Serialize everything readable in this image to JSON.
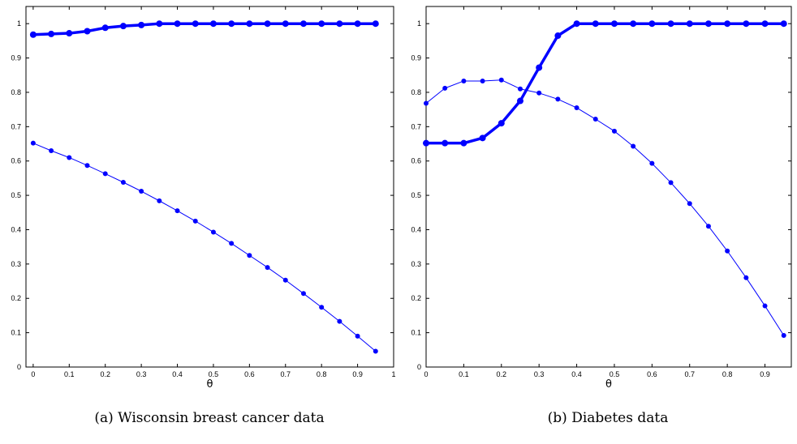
{
  "chart_data": [
    {
      "type": "line",
      "caption": "(a) Wisconsin breast cancer data",
      "xlabel": "θ",
      "ylabel": "",
      "xlim": [
        -0.02,
        1.0
      ],
      "ylim": [
        0,
        1.05
      ],
      "xticks": [
        "0",
        "0.1",
        "0.2",
        "0.3",
        "0.4",
        "0.5",
        "0.6",
        "0.7",
        "0.8",
        "0.9",
        "1"
      ],
      "yticks": [
        "0",
        "0.1",
        "0.2",
        "0.3",
        "0.4",
        "0.5",
        "0.6",
        "0.7",
        "0.8",
        "0.9",
        "1"
      ],
      "grid": false,
      "color": "#0000ff",
      "x": [
        0,
        0.05,
        0.1,
        0.15,
        0.2,
        0.25,
        0.3,
        0.35,
        0.4,
        0.45,
        0.5,
        0.55,
        0.6,
        0.65,
        0.7,
        0.75,
        0.8,
        0.85,
        0.9,
        0.95
      ],
      "series": [
        {
          "style": "thick",
          "values": [
            0.968,
            0.97,
            0.972,
            0.978,
            0.988,
            0.993,
            0.996,
            1,
            1,
            1,
            1,
            1,
            1,
            1,
            1,
            1,
            1,
            1,
            1,
            1
          ]
        },
        {
          "style": "thin",
          "values": [
            0.652,
            0.63,
            0.61,
            0.587,
            0.563,
            0.538,
            0.512,
            0.484,
            0.455,
            0.425,
            0.393,
            0.36,
            0.325,
            0.29,
            0.253,
            0.214,
            0.174,
            0.133,
            0.09,
            0.046
          ]
        }
      ]
    },
    {
      "type": "line",
      "caption": "(b) Diabetes data",
      "xlabel": "θ",
      "ylabel": "",
      "xlim": [
        0,
        0.97
      ],
      "ylim": [
        0,
        1.05
      ],
      "xticks": [
        "0",
        "0.1",
        "0.2",
        "0.3",
        "0.4",
        "0.5",
        "0.6",
        "0.7",
        "0.8",
        "0.9"
      ],
      "yticks": [
        "0",
        "0.1",
        "0.2",
        "0.3",
        "0.4",
        "0.5",
        "0.6",
        "0.7",
        "0.8",
        "0.9",
        "1"
      ],
      "grid": false,
      "color": "#0000ff",
      "x": [
        0,
        0.05,
        0.1,
        0.15,
        0.2,
        0.25,
        0.3,
        0.35,
        0.4,
        0.45,
        0.5,
        0.55,
        0.6,
        0.65,
        0.7,
        0.75,
        0.8,
        0.85,
        0.9,
        0.95
      ],
      "series": [
        {
          "style": "thick",
          "values": [
            0.652,
            0.652,
            0.652,
            0.667,
            0.71,
            0.775,
            0.872,
            0.965,
            1,
            1,
            1,
            1,
            1,
            1,
            1,
            1,
            1,
            1,
            1,
            1
          ]
        },
        {
          "style": "thin",
          "values": [
            0.768,
            0.812,
            0.833,
            0.833,
            0.836,
            0.81,
            0.798,
            0.78,
            0.755,
            0.722,
            0.687,
            0.643,
            0.593,
            0.537,
            0.476,
            0.41,
            0.338,
            0.26,
            0.178,
            0.092
          ]
        }
      ]
    }
  ]
}
